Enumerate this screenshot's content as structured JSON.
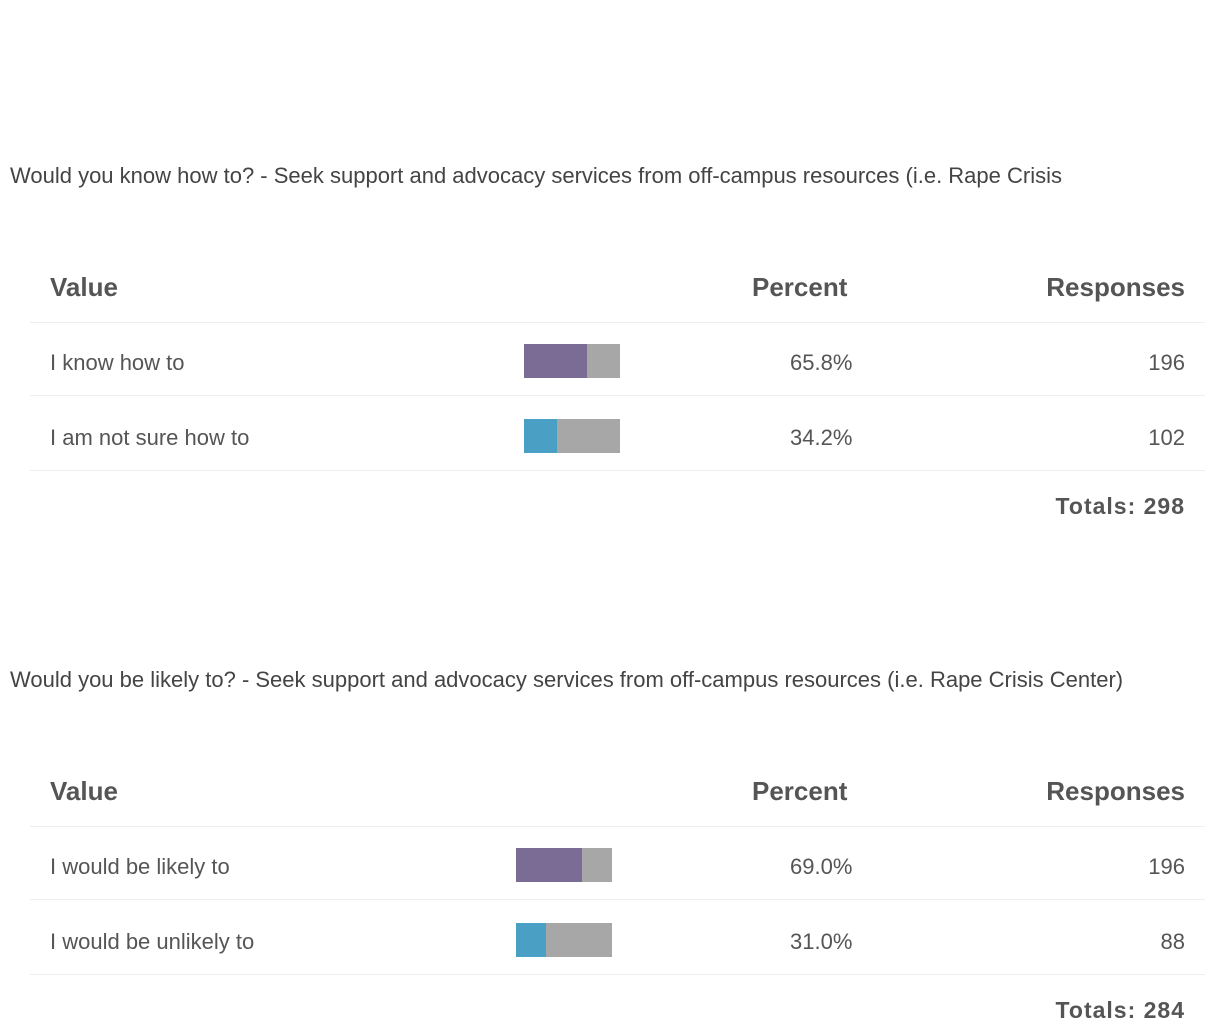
{
  "blocks": [
    {
      "question": "Would you know how to? - Seek support and advocacy services from off-campus resources (i.e. Rape Crisis",
      "headers": [
        "Value",
        "Percent",
        "Responses"
      ],
      "rows": [
        {
          "label": "I know how to",
          "percent": 65.8,
          "percent_label": "65.8%",
          "responses": 196,
          "color": "#7a6c95"
        },
        {
          "label": "I am not sure how to",
          "percent": 34.2,
          "percent_label": "34.2%",
          "responses": 102,
          "color": "#4aa0c4"
        }
      ],
      "totals": "Totals: 298"
    },
    {
      "question": "Would you be likely to? - Seek support and advocacy services from off-campus resources (i.e. Rape Crisis Center)",
      "headers": [
        "Value",
        "Percent",
        "Responses"
      ],
      "rows": [
        {
          "label": "I would be likely to",
          "percent": 69.0,
          "percent_label": "69.0%",
          "responses": 196,
          "color": "#7a6c95"
        },
        {
          "label": "I would be unlikely to",
          "percent": 31.0,
          "percent_label": "31.0%",
          "responses": 88,
          "color": "#4aa0c4"
        }
      ],
      "totals": "Totals: 284"
    }
  ]
}
